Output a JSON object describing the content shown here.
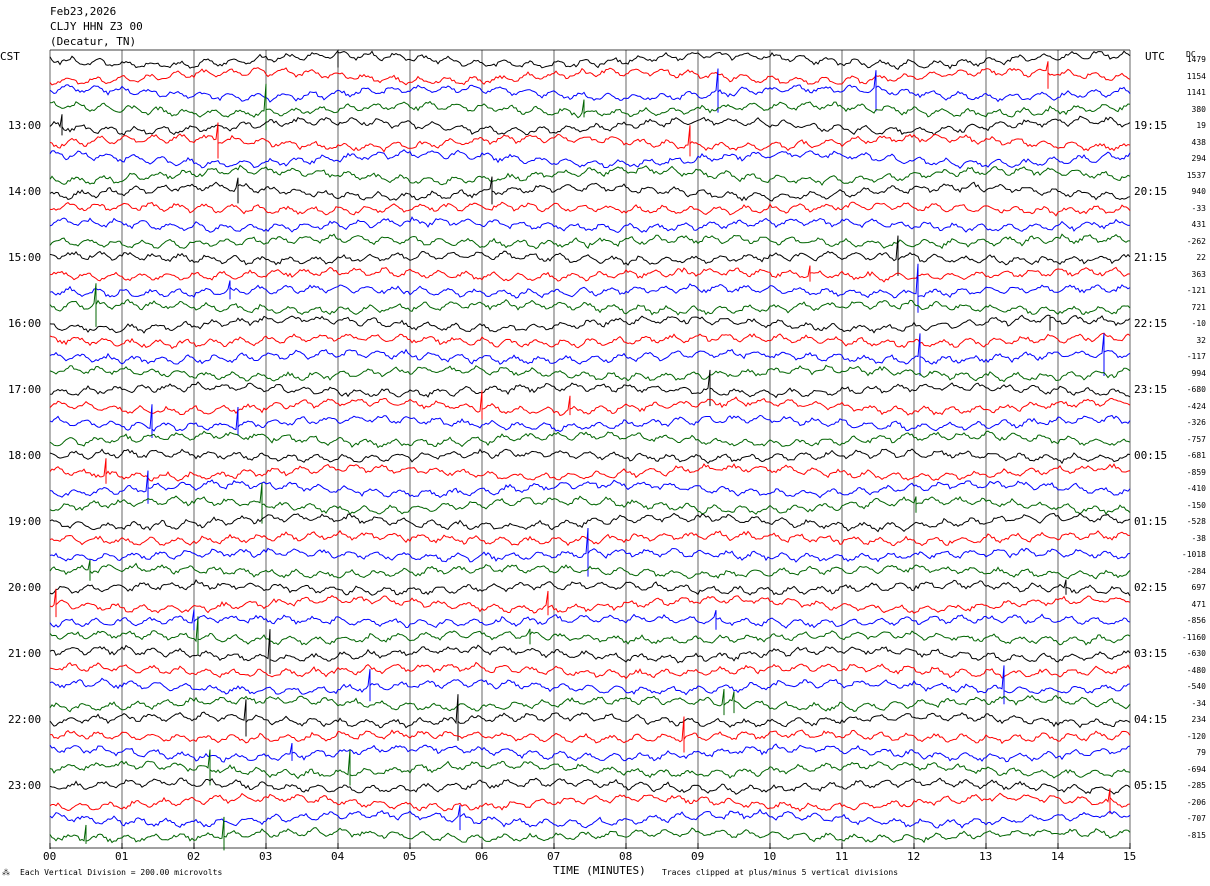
{
  "header": {
    "date": "Feb23,2026",
    "station": "CLJY HHN Z3 00",
    "location": "(Decatur, TN)"
  },
  "left_axis_title": "CST",
  "right_axis_title": "UTC",
  "dc_title": "DC",
  "x_axis_title": "TIME (MINUTES)",
  "footer_left": "Each Vertical Division =  200.00 microvolts",
  "footer_right": "Traces clipped at plus/minus 5 vertical divisions",
  "colors": {
    "black": "#000000",
    "red": "#ff0000",
    "blue": "#0000ff",
    "green": "#006400"
  },
  "chart_data": {
    "type": "line",
    "title": "Feb23,2026 CLJY HHN Z3 00 (Decatur, TN)",
    "xlabel": "TIME (MINUTES)",
    "x_ticks": [
      "00",
      "01",
      "02",
      "03",
      "04",
      "05",
      "06",
      "07",
      "08",
      "09",
      "10",
      "11",
      "12",
      "13",
      "14",
      "15"
    ],
    "xlim": [
      0,
      15
    ],
    "left_hour_labels": [
      "13:00",
      "14:00",
      "15:00",
      "16:00",
      "17:00",
      "18:00",
      "19:00",
      "20:00",
      "21:00",
      "22:00",
      "23:00"
    ],
    "right_hour_labels": [
      "19:15",
      "20:15",
      "21:15",
      "22:15",
      "23:15",
      "00:15",
      "01:15",
      "02:15",
      "03:15",
      "04:15",
      "05:15"
    ],
    "trace_color_cycle": [
      "black",
      "red",
      "blue",
      "green"
    ],
    "trace_count": 48,
    "dc_offsets": [
      1479,
      1154,
      1141,
      380,
      19,
      438,
      294,
      1537,
      940,
      -33,
      431,
      -262,
      22,
      363,
      -121,
      721,
      -10,
      32,
      -117,
      994,
      -680,
      -424,
      -326,
      -757,
      -681,
      -859,
      -410,
      -150,
      -528,
      -38,
      -1018,
      -284,
      697,
      471,
      -856,
      -1160,
      -630,
      -480,
      -540,
      -34,
      234,
      -120,
      79,
      -694,
      -285,
      -206,
      -707,
      -815
    ],
    "vertical_division_microvolts": 200.0,
    "clip_divisions": 5
  }
}
